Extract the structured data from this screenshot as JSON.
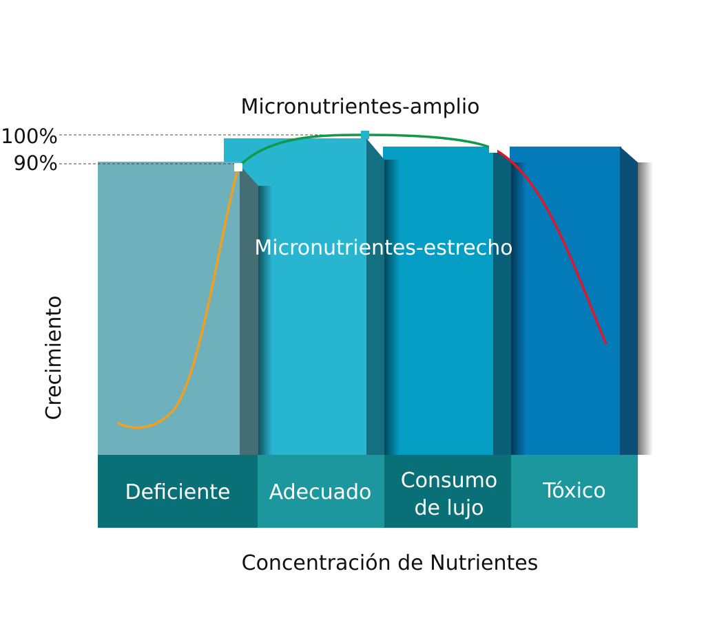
{
  "diagram": {
    "title": "Micronutrientes-amplio",
    "inner_label": "Micronutrientes-estrecho",
    "y_axis_label": "Crecimiento",
    "x_axis_label": "Concentración de Nutrientes",
    "ticks": {
      "t100": "100%",
      "t90": "90%"
    },
    "zones": [
      {
        "line1": "Deficiente",
        "line2": ""
      },
      {
        "line1": "Adecuado",
        "line2": ""
      },
      {
        "line1": "Consumo",
        "line2": "de lujo"
      },
      {
        "line1": "Tóxico",
        "line2": ""
      }
    ],
    "colors": {
      "deficiente": "#6fb0bd",
      "adecuado": "#27b5d0",
      "consumo": "#049dc4",
      "toxico": "#037bb8",
      "band_dark": "#097078",
      "band_light": "#1d979e",
      "curve_deficient": "#f0a020",
      "curve_optimal": "#0e9a48",
      "curve_toxic": "#e0162b"
    }
  }
}
